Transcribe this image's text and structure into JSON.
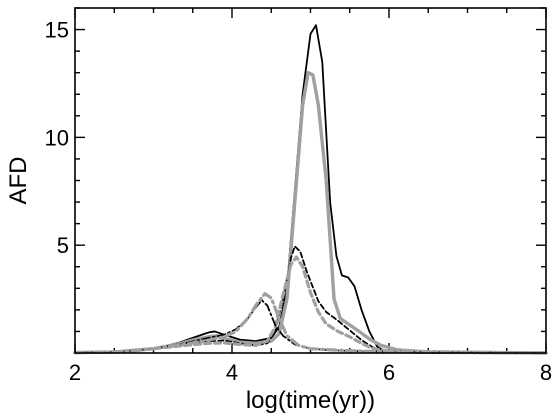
{
  "chart_data": {
    "type": "line",
    "xlabel": "log(time(yr))",
    "ylabel": "AFD",
    "xlim": [
      2,
      8
    ],
    "ylim": [
      0,
      16
    ],
    "xticks": [
      2,
      4,
      6,
      8
    ],
    "yticks": [
      5,
      10,
      15
    ],
    "x_minor_step": 0.5,
    "y_minor_step": 1,
    "grid": false,
    "legend": "none",
    "series": [
      {
        "style": {
          "color": "#000000",
          "dash": "",
          "width": 1.8
        },
        "points": [
          [
            2.0,
            0.02
          ],
          [
            2.5,
            0.05
          ],
          [
            3.0,
            0.2
          ],
          [
            3.3,
            0.45
          ],
          [
            3.5,
            0.7
          ],
          [
            3.7,
            0.95
          ],
          [
            3.78,
            1.0
          ],
          [
            3.9,
            0.85
          ],
          [
            4.1,
            0.62
          ],
          [
            4.3,
            0.55
          ],
          [
            4.5,
            0.7
          ],
          [
            4.6,
            1.2
          ],
          [
            4.7,
            3.0
          ],
          [
            4.8,
            7.5
          ],
          [
            4.9,
            12.0
          ],
          [
            5.0,
            14.8
          ],
          [
            5.07,
            15.2
          ],
          [
            5.15,
            13.5
          ],
          [
            5.25,
            7.0
          ],
          [
            5.33,
            4.5
          ],
          [
            5.4,
            3.6
          ],
          [
            5.48,
            3.5
          ],
          [
            5.56,
            3.1
          ],
          [
            5.65,
            2.0
          ],
          [
            5.75,
            1.0
          ],
          [
            5.85,
            0.3
          ],
          [
            5.95,
            0.05
          ],
          [
            6.2,
            0.02
          ],
          [
            6.6,
            0.0
          ],
          [
            8.0,
            0.0
          ]
        ]
      },
      {
        "style": {
          "color": "#a0a0a0",
          "dash": "",
          "width": 3.4
        },
        "points": [
          [
            2.0,
            0.02
          ],
          [
            2.5,
            0.05
          ],
          [
            3.0,
            0.2
          ],
          [
            3.3,
            0.4
          ],
          [
            3.5,
            0.6
          ],
          [
            3.7,
            0.75
          ],
          [
            3.8,
            0.8
          ],
          [
            3.9,
            0.68
          ],
          [
            4.1,
            0.5
          ],
          [
            4.3,
            0.45
          ],
          [
            4.5,
            0.55
          ],
          [
            4.6,
            0.9
          ],
          [
            4.7,
            2.5
          ],
          [
            4.8,
            7.0
          ],
          [
            4.9,
            11.5
          ],
          [
            4.97,
            13.0
          ],
          [
            5.03,
            12.9
          ],
          [
            5.1,
            11.5
          ],
          [
            5.2,
            8.0
          ],
          [
            5.3,
            2.5
          ],
          [
            5.38,
            1.6
          ],
          [
            5.5,
            1.3
          ],
          [
            5.62,
            1.0
          ],
          [
            5.75,
            0.65
          ],
          [
            5.9,
            0.35
          ],
          [
            6.1,
            0.15
          ],
          [
            6.5,
            0.05
          ],
          [
            8.0,
            0.0
          ]
        ]
      },
      {
        "style": {
          "color": "#000000",
          "dash": "5,3",
          "width": 1.8
        },
        "points": [
          [
            2.0,
            0.02
          ],
          [
            2.6,
            0.05
          ],
          [
            3.0,
            0.2
          ],
          [
            3.4,
            0.4
          ],
          [
            3.7,
            0.55
          ],
          [
            3.9,
            0.58
          ],
          [
            4.1,
            0.45
          ],
          [
            4.3,
            0.35
          ],
          [
            4.45,
            0.45
          ],
          [
            4.55,
            1.0
          ],
          [
            4.65,
            2.5
          ],
          [
            4.75,
            4.4
          ],
          [
            4.8,
            4.95
          ],
          [
            4.87,
            4.7
          ],
          [
            4.95,
            3.8
          ],
          [
            5.1,
            2.4
          ],
          [
            5.2,
            1.9
          ],
          [
            5.35,
            1.5
          ],
          [
            5.5,
            1.05
          ],
          [
            5.65,
            0.6
          ],
          [
            5.8,
            0.25
          ],
          [
            6.0,
            0.1
          ],
          [
            6.5,
            0.03
          ],
          [
            8.0,
            0.0
          ]
        ]
      },
      {
        "style": {
          "color": "#a0a0a0",
          "dash": "6,4",
          "width": 3.2
        },
        "points": [
          [
            2.0,
            0.02
          ],
          [
            2.6,
            0.05
          ],
          [
            3.0,
            0.2
          ],
          [
            3.4,
            0.35
          ],
          [
            3.7,
            0.45
          ],
          [
            3.9,
            0.47
          ],
          [
            4.1,
            0.4
          ],
          [
            4.3,
            0.35
          ],
          [
            4.45,
            0.55
          ],
          [
            4.55,
            1.2
          ],
          [
            4.65,
            2.7
          ],
          [
            4.75,
            4.1
          ],
          [
            4.82,
            4.45
          ],
          [
            4.9,
            4.0
          ],
          [
            5.0,
            2.8
          ],
          [
            5.1,
            1.9
          ],
          [
            5.2,
            1.35
          ],
          [
            5.35,
            1.0
          ],
          [
            5.5,
            0.75
          ],
          [
            5.65,
            0.45
          ],
          [
            5.8,
            0.2
          ],
          [
            6.0,
            0.08
          ],
          [
            8.0,
            0.0
          ]
        ]
      },
      {
        "style": {
          "color": "#000000",
          "dash": "8,3,2,3",
          "width": 1.8
        },
        "points": [
          [
            2.0,
            0.02
          ],
          [
            2.6,
            0.05
          ],
          [
            3.0,
            0.2
          ],
          [
            3.4,
            0.45
          ],
          [
            3.7,
            0.7
          ],
          [
            3.9,
            0.85
          ],
          [
            4.05,
            1.1
          ],
          [
            4.2,
            1.6
          ],
          [
            4.3,
            2.1
          ],
          [
            4.38,
            2.45
          ],
          [
            4.45,
            2.2
          ],
          [
            4.55,
            1.3
          ],
          [
            4.65,
            0.8
          ],
          [
            4.8,
            0.4
          ],
          [
            5.0,
            0.2
          ],
          [
            5.3,
            0.12
          ],
          [
            5.8,
            0.07
          ],
          [
            6.4,
            0.04
          ],
          [
            7.0,
            0.02
          ],
          [
            8.0,
            0.0
          ]
        ]
      },
      {
        "style": {
          "color": "#a0a0a0",
          "dash": "9,4,2,4",
          "width": 3.2
        },
        "points": [
          [
            2.0,
            0.02
          ],
          [
            2.6,
            0.05
          ],
          [
            3.0,
            0.2
          ],
          [
            3.4,
            0.4
          ],
          [
            3.7,
            0.6
          ],
          [
            3.9,
            0.75
          ],
          [
            4.05,
            1.0
          ],
          [
            4.2,
            1.6
          ],
          [
            4.32,
            2.3
          ],
          [
            4.42,
            2.75
          ],
          [
            4.5,
            2.55
          ],
          [
            4.6,
            1.6
          ],
          [
            4.7,
            0.8
          ],
          [
            4.85,
            0.35
          ],
          [
            5.0,
            0.2
          ],
          [
            5.4,
            0.12
          ],
          [
            5.9,
            0.06
          ],
          [
            6.5,
            0.03
          ],
          [
            7.0,
            0.02
          ],
          [
            8.0,
            0.0
          ]
        ]
      }
    ]
  }
}
